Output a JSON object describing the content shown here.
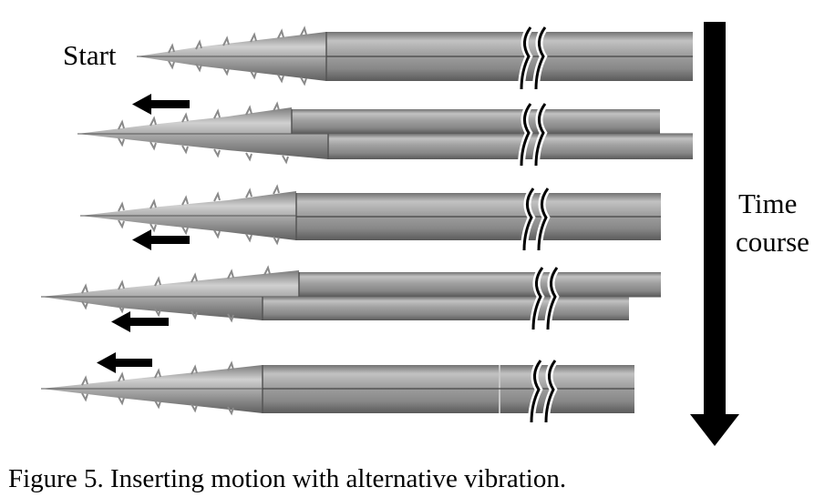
{
  "figure": {
    "start_label": "Start",
    "time_axis": {
      "line1": "Time",
      "line2": "course",
      "arrow_icon": "down-arrow-icon"
    },
    "frame_arrow_icon": "left-arrow-icon",
    "caption": "Figure 5. Inserting motion with alternative vibration.",
    "colors": {
      "needle_body": "#9c9c9c",
      "needle_highlight": "#d4d4d4",
      "needle_shadow": "#5a5a5a",
      "barbs": "#888888",
      "arrows": "#000000",
      "background": "#ffffff"
    }
  }
}
